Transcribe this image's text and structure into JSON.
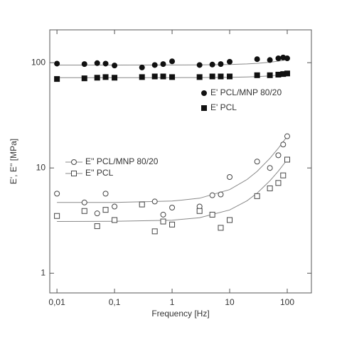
{
  "chart_data": {
    "type": "scatter",
    "x_label": "Frequency [Hz]",
    "y_label": "E', E'' [MPa]",
    "xscale": "log",
    "yscale": "log",
    "xlim": [
      0.0075,
      263
    ],
    "ylim": [
      0.65,
      205
    ],
    "xticks": [
      {
        "value": 0.01,
        "label": "0,01"
      },
      {
        "value": 0.1,
        "label": "0,1"
      },
      1,
      10,
      100
    ],
    "yticks": [
      1,
      10,
      100
    ],
    "x": [
      0.01,
      0.03,
      0.05,
      0.07,
      0.1,
      0.3,
      0.5,
      0.7,
      1,
      3,
      5,
      7,
      10,
      30,
      50,
      70,
      85,
      100
    ],
    "fit_x": [
      0.01,
      0.1,
      1,
      3,
      10,
      20,
      30,
      50,
      70,
      100
    ],
    "fit_color": "#888888",
    "series": [
      {
        "name": "E' PCL/MNP 80/20",
        "color": "#111111",
        "marker": "circle",
        "filled": true,
        "values": [
          98,
          97,
          99,
          98,
          94,
          90,
          95,
          97,
          103,
          95,
          96,
          97,
          102,
          108,
          106,
          110,
          112,
          110
        ],
        "fit": [
          95,
          95,
          95.1,
          95.4,
          96.2,
          97.4,
          98.6,
          101,
          103.4,
          107
        ]
      },
      {
        "name": "E' PCL",
        "color": "#111111",
        "marker": "square",
        "filled": true,
        "values": [
          70,
          71,
          72,
          73,
          72,
          73,
          74,
          74,
          73,
          73,
          74,
          74,
          74,
          76,
          76,
          77,
          78,
          79
        ],
        "fit": [
          72,
          72,
          72.1,
          72.2,
          72.6,
          73.2,
          73.8,
          75,
          76.2,
          78
        ]
      },
      {
        "name": "E'' PCL/MNP 80/20",
        "color": "#444444",
        "marker": "circle",
        "filled": false,
        "values": [
          5.7,
          4.7,
          3.7,
          5.7,
          4.3,
          4.5,
          4.8,
          3.6,
          4.2,
          4.3,
          5.5,
          5.6,
          8.2,
          11.5,
          10,
          13.2,
          16.7,
          20
        ],
        "fit": [
          4.7,
          4.7,
          4.85,
          5.16,
          6.23,
          7.76,
          9.29,
          12.35,
          15.41,
          20
        ]
      },
      {
        "name": "E'' PCL",
        "color": "#444444",
        "marker": "square",
        "filled": false,
        "values": [
          3.5,
          3.9,
          2.8,
          4,
          3.2,
          4.5,
          2.5,
          3.1,
          2.9,
          3.9,
          3.6,
          2.7,
          3.2,
          5.4,
          6.4,
          7.2,
          8.5,
          12
        ],
        "fit": [
          3.1,
          3.11,
          3.19,
          3.37,
          3.99,
          4.88,
          5.77,
          7.55,
          9.33,
          12
        ]
      }
    ]
  }
}
